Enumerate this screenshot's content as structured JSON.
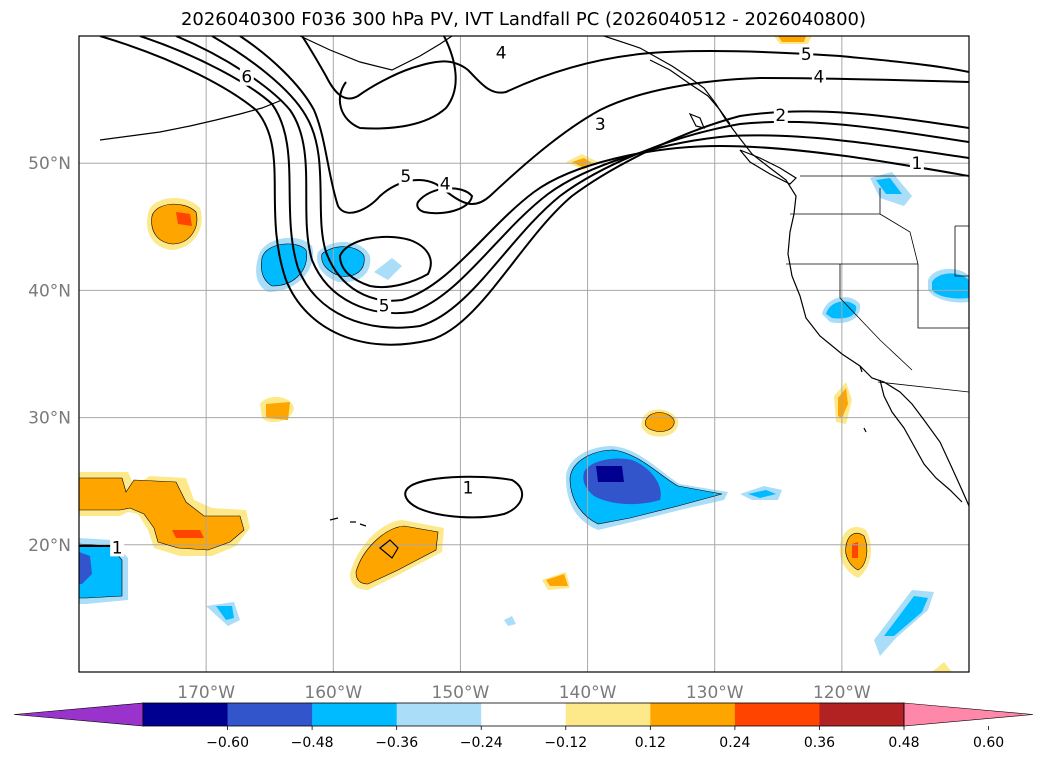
{
  "chart_data": {
    "type": "contour-map",
    "title": "2026040300 F036 300 hPa PV, IVT Landfall PC (2026040512 - 2026040800)",
    "projection": "PlateCarree",
    "extent": {
      "lon": [
        -180,
        -110
      ],
      "lat": [
        10,
        60
      ]
    },
    "lat_ticks": [
      {
        "value": 50,
        "label": "50°N"
      },
      {
        "value": 40,
        "label": "40°N"
      },
      {
        "value": 30,
        "label": "30°N"
      },
      {
        "value": 20,
        "label": "20°N"
      }
    ],
    "lon_ticks": [
      {
        "value": -170,
        "label": "170°W"
      },
      {
        "value": -160,
        "label": "160°W"
      },
      {
        "value": -150,
        "label": "150°W"
      },
      {
        "value": -140,
        "label": "140°W"
      },
      {
        "value": -130,
        "label": "130°W"
      },
      {
        "value": -120,
        "label": "120°W"
      }
    ],
    "gridlines": true,
    "pv_contours": {
      "field": "300 hPa PV (PVU)",
      "levels": [
        1,
        2,
        3,
        4,
        5,
        6
      ],
      "labels": [
        {
          "text": "6",
          "lon": -166.8,
          "lat": 56.8
        },
        {
          "text": "4",
          "lon": -146.8,
          "lat": 58.7
        },
        {
          "text": "5",
          "lon": -122.8,
          "lat": 58.6
        },
        {
          "text": "4",
          "lon": -121.8,
          "lat": 56.8
        },
        {
          "text": "3",
          "lon": -139.0,
          "lat": 53.1
        },
        {
          "text": "2",
          "lon": -124.8,
          "lat": 53.8
        },
        {
          "text": "1",
          "lon": -114.1,
          "lat": 50.0
        },
        {
          "text": "5",
          "lon": -154.3,
          "lat": 49.0
        },
        {
          "text": "4",
          "lon": -151.2,
          "lat": 48.4
        },
        {
          "text": "5",
          "lon": -156.0,
          "lat": 38.8
        },
        {
          "text": "1",
          "lon": -149.4,
          "lat": 24.5
        },
        {
          "text": "1",
          "lon": -177.0,
          "lat": 19.8
        }
      ]
    },
    "ivt_pc_shading": {
      "field": "IVT Landfall PC",
      "levels": [
        -0.6,
        -0.48,
        -0.36,
        -0.24,
        -0.12,
        0.12,
        0.24,
        0.36,
        0.48,
        0.6
      ],
      "tick_labels": [
        "−0.60",
        "−0.48",
        "−0.36",
        "−0.24",
        "−0.12",
        "0.12",
        "0.24",
        "0.36",
        "0.48",
        "0.60"
      ],
      "colors": [
        "#9933cc",
        "#000090",
        "#3355cc",
        "#00bbff",
        "#aaddf8",
        "#ffffff",
        "#fde98a",
        "#ffa500",
        "#ff4400",
        "#b22222",
        "#ff88aa"
      ],
      "extend": "both",
      "colorbar_position": "bottom"
    }
  }
}
